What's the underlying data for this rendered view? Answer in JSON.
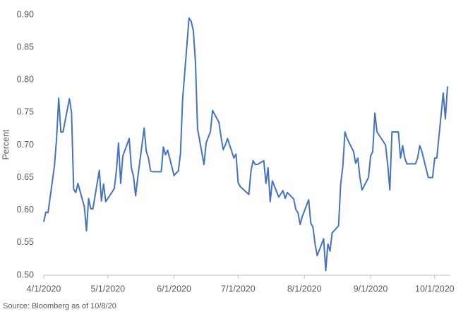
{
  "chart_data": {
    "type": "line",
    "y_label": "Percent",
    "source": "Source: Bloomberg as of 10/8/20",
    "color": "#4472c4",
    "x": [
      "4/1/2020",
      "4/2/2020",
      "4/3/2020",
      "4/6/2020",
      "4/7/2020",
      "4/8/2020",
      "4/9/2020",
      "4/10/2020",
      "4/13/2020",
      "4/14/2020",
      "4/15/2020",
      "4/16/2020",
      "4/17/2020",
      "4/20/2020",
      "4/21/2020",
      "4/22/2020",
      "4/23/2020",
      "4/24/2020",
      "4/27/2020",
      "4/28/2020",
      "4/29/2020",
      "4/30/2020",
      "5/4/2020",
      "5/5/2020",
      "5/6/2020",
      "5/7/2020",
      "5/8/2020",
      "5/11/2020",
      "5/12/2020",
      "5/13/2020",
      "5/14/2020",
      "5/15/2020",
      "5/18/2020",
      "5/19/2020",
      "5/20/2020",
      "5/21/2020",
      "5/22/2020",
      "5/26/2020",
      "5/27/2020",
      "5/28/2020",
      "5/29/2020",
      "6/1/2020",
      "6/2/2020",
      "6/3/2020",
      "6/4/2020",
      "6/5/2020",
      "6/8/2020",
      "6/9/2020",
      "6/10/2020",
      "6/11/2020",
      "6/12/2020",
      "6/15/2020",
      "6/16/2020",
      "6/17/2020",
      "6/18/2020",
      "6/19/2020",
      "6/22/2020",
      "6/23/2020",
      "6/24/2020",
      "6/25/2020",
      "6/26/2020",
      "6/29/2020",
      "6/30/2020",
      "7/1/2020",
      "7/2/2020",
      "7/6/2020",
      "7/7/2020",
      "7/8/2020",
      "7/9/2020",
      "7/10/2020",
      "7/13/2020",
      "7/14/2020",
      "7/15/2020",
      "7/16/2020",
      "7/17/2020",
      "7/20/2020",
      "7/21/2020",
      "7/22/2020",
      "7/23/2020",
      "7/24/2020",
      "7/27/2020",
      "7/28/2020",
      "7/29/2020",
      "7/30/2020",
      "7/31/2020",
      "8/3/2020",
      "8/4/2020",
      "8/5/2020",
      "8/6/2020",
      "8/7/2020",
      "8/10/2020",
      "8/11/2020",
      "8/12/2020",
      "8/13/2020",
      "8/14/2020",
      "8/17/2020",
      "8/18/2020",
      "8/19/2020",
      "8/20/2020",
      "8/21/2020",
      "8/24/2020",
      "8/25/2020",
      "8/26/2020",
      "8/27/2020",
      "8/28/2020",
      "8/31/2020",
      "9/1/2020",
      "9/2/2020",
      "9/3/2020",
      "9/4/2020",
      "9/8/2020",
      "9/9/2020",
      "9/10/2020",
      "9/11/2020",
      "9/14/2020",
      "9/15/2020",
      "9/16/2020",
      "9/17/2020",
      "9/18/2020",
      "9/21/2020",
      "9/22/2020",
      "9/23/2020",
      "9/24/2020",
      "9/25/2020",
      "9/28/2020",
      "9/29/2020",
      "9/30/2020",
      "10/1/2020",
      "10/2/2020",
      "10/5/2020",
      "10/6/2020",
      "10/7/2020"
    ],
    "values": [
      0.582,
      0.597,
      0.596,
      0.668,
      0.71,
      0.772,
      0.72,
      0.72,
      0.771,
      0.75,
      0.632,
      0.627,
      0.641,
      0.605,
      0.568,
      0.618,
      0.602,
      0.602,
      0.661,
      0.614,
      0.64,
      0.613,
      0.633,
      0.66,
      0.703,
      0.641,
      0.683,
      0.71,
      0.665,
      0.652,
      0.622,
      0.65,
      0.726,
      0.69,
      0.68,
      0.66,
      0.659,
      0.659,
      0.697,
      0.685,
      0.692,
      0.653,
      0.657,
      0.66,
      0.687,
      0.77,
      0.895,
      0.89,
      0.876,
      0.828,
      0.725,
      0.67,
      0.703,
      0.712,
      0.72,
      0.753,
      0.735,
      0.712,
      0.693,
      0.7,
      0.71,
      0.68,
      0.686,
      0.642,
      0.636,
      0.624,
      0.66,
      0.676,
      0.67,
      0.67,
      0.676,
      0.641,
      0.665,
      0.613,
      0.645,
      0.62,
      0.625,
      0.63,
      0.618,
      0.627,
      0.617,
      0.601,
      0.596,
      0.578,
      0.59,
      0.616,
      0.58,
      0.574,
      0.548,
      0.53,
      0.556,
      0.507,
      0.548,
      0.537,
      0.565,
      0.576,
      0.64,
      0.667,
      0.72,
      0.71,
      0.69,
      0.672,
      0.68,
      0.65,
      0.631,
      0.65,
      0.683,
      0.69,
      0.749,
      0.72,
      0.7,
      0.67,
      0.631,
      0.72,
      0.72,
      0.68,
      0.699,
      0.68,
      0.671,
      0.671,
      0.671,
      0.68,
      0.699,
      0.69,
      0.65,
      0.65,
      0.65,
      0.68,
      0.68,
      0.78,
      0.74,
      0.79
    ],
    "xlim": [
      "4/1/2020",
      "10/8/2020"
    ],
    "xticks": [
      "4/1/2020",
      "5/1/2020",
      "6/1/2020",
      "7/1/2020",
      "8/1/2020",
      "9/1/2020",
      "10/1/2020"
    ],
    "ylim": [
      0.5,
      0.9
    ],
    "yticks": [
      {
        "value": 0.5,
        "label": "0.50"
      },
      {
        "value": 0.55,
        "label": "0.55"
      },
      {
        "value": 0.6,
        "label": "0.60"
      },
      {
        "value": 0.65,
        "label": "0.65"
      },
      {
        "value": 0.7,
        "label": "0.70"
      },
      {
        "value": 0.75,
        "label": "0.75"
      },
      {
        "value": 0.8,
        "label": "0.80"
      },
      {
        "value": 0.85,
        "label": "0.85"
      },
      {
        "value": 0.9,
        "label": "0.90"
      }
    ],
    "grid": false
  }
}
